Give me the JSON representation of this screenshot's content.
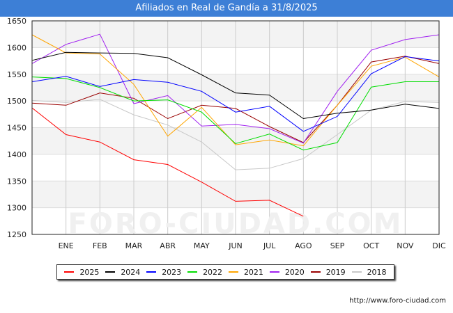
{
  "title": "Afiliados en Real de Gandía a 31/8/2025",
  "footer": "http://www.foro-ciudad.com",
  "watermark": "FORO-CIUDAD.COM",
  "chart_data": {
    "type": "line",
    "categories": [
      "",
      "ENE",
      "FEB",
      "MAR",
      "ABR",
      "MAY",
      "JUN",
      "JUL",
      "AGO",
      "SEP",
      "OCT",
      "NOV",
      "DIC"
    ],
    "yticks": [
      1250,
      1300,
      1350,
      1400,
      1450,
      1500,
      1550,
      1600,
      1650
    ],
    "ylim": [
      1250,
      1650
    ],
    "grid": true,
    "legend_position": "bottom",
    "series": [
      {
        "name": "2025",
        "color": "#ff0000",
        "values": [
          1487,
          1437,
          1423,
          1390,
          1381,
          1348,
          1312,
          1314,
          1284,
          null,
          null,
          null,
          null
        ]
      },
      {
        "name": "2024",
        "color": "#000000",
        "values": [
          1576,
          1591,
          1590,
          1589,
          1581,
          1549,
          1515,
          1511,
          1467,
          1477,
          1483,
          1494,
          1486
        ]
      },
      {
        "name": "2023",
        "color": "#0000ff",
        "values": [
          1536,
          1546,
          1527,
          1540,
          1535,
          1518,
          1479,
          1490,
          1443,
          1471,
          1551,
          1583,
          1575
        ]
      },
      {
        "name": "2022",
        "color": "#00dd00",
        "values": [
          1545,
          1542,
          1525,
          1500,
          1502,
          1479,
          1420,
          1438,
          1408,
          1422,
          1526,
          1536,
          1536
        ]
      },
      {
        "name": "2021",
        "color": "#ffa500",
        "values": [
          1624,
          1590,
          1588,
          1531,
          1434,
          1488,
          1418,
          1427,
          1416,
          1492,
          1565,
          1582,
          1545
        ]
      },
      {
        "name": "2020",
        "color": "#a020f0",
        "values": [
          1570,
          1606,
          1625,
          1495,
          1510,
          1453,
          1456,
          1448,
          1421,
          1518,
          1595,
          1615,
          1624
        ]
      },
      {
        "name": "2019",
        "color": "#990000",
        "values": [
          1496,
          1492,
          1515,
          1505,
          1467,
          1492,
          1486,
          1452,
          1422,
          1492,
          1573,
          1584,
          1570
        ]
      },
      {
        "name": "2018",
        "color": "#c8c8c8",
        "values": [
          1501,
          1497,
          1503,
          1474,
          1455,
          1423,
          1371,
          1374,
          1392,
          1437,
          1483,
          1499,
          1497
        ]
      }
    ]
  }
}
